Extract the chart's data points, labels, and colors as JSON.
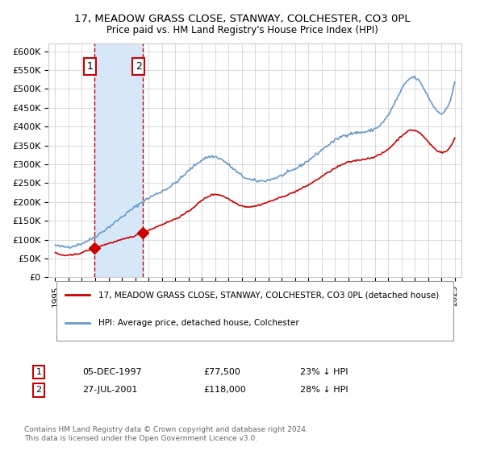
{
  "title": "17, MEADOW GRASS CLOSE, STANWAY, COLCHESTER, CO3 0PL",
  "subtitle": "Price paid vs. HM Land Registry's House Price Index (HPI)",
  "ylabel": "",
  "ylim": [
    0,
    620000
  ],
  "yticks": [
    0,
    50000,
    100000,
    150000,
    200000,
    250000,
    300000,
    350000,
    400000,
    450000,
    500000,
    550000,
    600000
  ],
  "ytick_labels": [
    "£0",
    "£50K",
    "£100K",
    "£150K",
    "£200K",
    "£250K",
    "£300K",
    "£350K",
    "£400K",
    "£450K",
    "£500K",
    "£550K",
    "£600K"
  ],
  "xlim_start": 1994.5,
  "xlim_end": 2025.5,
  "sale1_date": 1997.92,
  "sale1_price": 77500,
  "sale2_date": 2001.56,
  "sale2_price": 118000,
  "legend_line1": "17, MEADOW GRASS CLOSE, STANWAY, COLCHESTER, CO3 0PL (detached house)",
  "legend_line2": "HPI: Average price, detached house, Colchester",
  "annotation1_label": "1",
  "annotation1_date": "05-DEC-1997",
  "annotation1_price": "£77,500",
  "annotation1_hpi": "23% ↓ HPI",
  "annotation2_label": "2",
  "annotation2_date": "27-JUL-2001",
  "annotation2_price": "£118,000",
  "annotation2_hpi": "28% ↓ HPI",
  "footer": "Contains HM Land Registry data © Crown copyright and database right 2024.\nThis data is licensed under the Open Government Licence v3.0.",
  "line_red_color": "#cc0000",
  "line_blue_color": "#6699cc",
  "shade_color": "#d6e8f7",
  "grid_color": "#cccccc",
  "background_color": "#ffffff"
}
